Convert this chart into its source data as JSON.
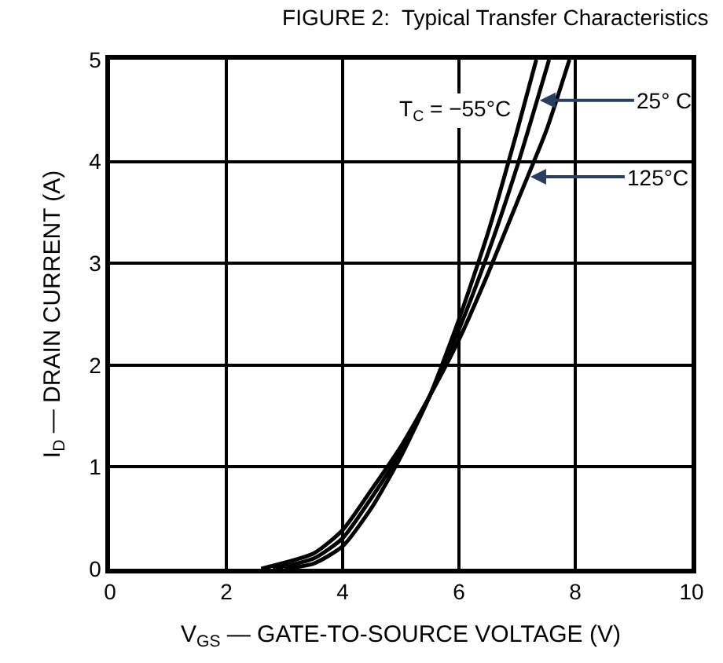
{
  "chart_data": {
    "type": "line",
    "title": "FIGURE 2:  Typical Transfer Characteristics",
    "xlabel": "V$_{GS}$ — GATE-TO-SOURCE VOLTAGE (V)",
    "ylabel": "I$_{D}$ — DRAIN CURRENT (A)",
    "xlim": [
      0,
      10
    ],
    "xticks": [
      0,
      2,
      4,
      6,
      8,
      10
    ],
    "ylim": [
      0,
      5
    ],
    "yticks": [
      0,
      1,
      2,
      3,
      4,
      5
    ],
    "grid": true,
    "series": [
      {
        "name": "T$_{C}$ = −55°C",
        "color": "#000000",
        "x": [
          3.0,
          3.5,
          4,
          4.5,
          5,
          5.5,
          6,
          6.5,
          7,
          7.33
        ],
        "values": [
          0,
          0.05,
          0.22,
          0.6,
          1.1,
          1.7,
          2.45,
          3.3,
          4.3,
          5
        ]
      },
      {
        "name": "25° C",
        "color": "#000000",
        "x": [
          2.8,
          3.5,
          4,
          4.5,
          5,
          5.5,
          6,
          6.5,
          7,
          7.55
        ],
        "values": [
          0,
          0.1,
          0.3,
          0.7,
          1.15,
          1.7,
          2.35,
          3.1,
          3.95,
          5
        ]
      },
      {
        "name": "125°C",
        "color": "#000000",
        "x": [
          2.6,
          3.5,
          4,
          4.5,
          5,
          5.5,
          6,
          6.5,
          7,
          7.5,
          7.9
        ],
        "values": [
          0,
          0.15,
          0.38,
          0.78,
          1.2,
          1.7,
          2.25,
          2.9,
          3.6,
          4.3,
          5
        ]
      }
    ]
  }
}
